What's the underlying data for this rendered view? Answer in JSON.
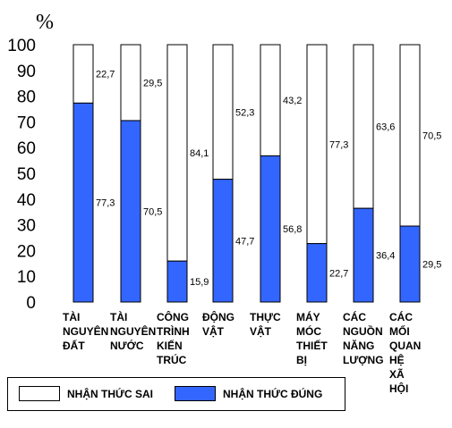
{
  "chart_data": {
    "type": "bar",
    "stacked": true,
    "unit_label": "%",
    "ylim": [
      0,
      100
    ],
    "yticks": [
      0,
      10,
      20,
      30,
      40,
      50,
      60,
      70,
      80,
      90,
      100
    ],
    "categories": [
      [
        "TÀI",
        "NGUYÊN",
        "ĐẤT"
      ],
      [
        "TÀI",
        "NGUYÊN",
        "NƯỚC"
      ],
      [
        "CÔNG",
        "TRÌNH",
        "KIẾN",
        "TRÚC"
      ],
      [
        "ĐỘNG",
        "VẬT"
      ],
      [
        "THỰC",
        "VẬT"
      ],
      [
        "MÁY",
        "MÓC",
        "THIẾT",
        "BỊ"
      ],
      [
        "CÁC",
        "NGUỒN",
        "NĂNG",
        "LƯỢNG"
      ],
      [
        "CÁC",
        "MỐI",
        "QUAN",
        "HỆ",
        "XÃ",
        "HỘI"
      ]
    ],
    "series": [
      {
        "name": "NHẬN THỨC ĐÚNG",
        "color": "#3366ff",
        "values": [
          77.3,
          70.5,
          15.9,
          47.7,
          56.8,
          22.7,
          36.4,
          29.5
        ],
        "labels": [
          "77,3",
          "70,5",
          "15,9",
          "47,7",
          "56,8",
          "22,7",
          "36,4",
          "29,5"
        ]
      },
      {
        "name": "NHẬN THỨC SAI",
        "color": "#ffffff",
        "values": [
          22.7,
          29.5,
          84.1,
          52.3,
          43.2,
          77.3,
          63.6,
          70.5
        ],
        "labels": [
          "22,7",
          "29,5",
          "84,1",
          "52,3",
          "43,2",
          "77,3",
          "63,6",
          "70,5"
        ]
      }
    ],
    "legend": [
      {
        "label": "NHẬN THỨC SAI",
        "color": "#ffffff"
      },
      {
        "label": "NHẬN THỨC ĐÚNG",
        "color": "#3366ff"
      }
    ],
    "legend_position": "bottom-left",
    "grid": false
  }
}
